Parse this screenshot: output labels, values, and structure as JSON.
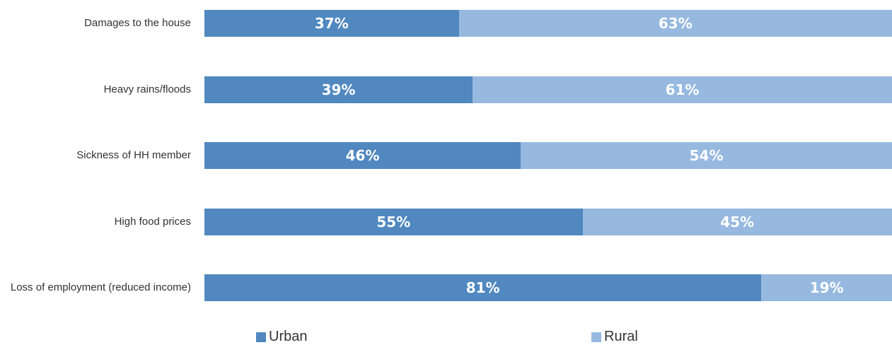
{
  "chart_data": {
    "type": "stacked-bar",
    "categories": [
      "Damages to the house",
      "Heavy rains/floods",
      "Sickness of HH member",
      "High food prices",
      "Loss of employment (reduced income)"
    ],
    "series": [
      {
        "name": "Urban",
        "color": "#5088bf",
        "values": [
          37,
          39,
          46,
          55,
          81
        ],
        "value_labels": [
          "37%",
          "39%",
          "46%",
          "55%",
          "81%"
        ]
      },
      {
        "name": "Rural",
        "color": "#97b9e0",
        "values": [
          63,
          61,
          54,
          45,
          19
        ],
        "value_labels": [
          "63%",
          "61%",
          "54%",
          "45%",
          "19%"
        ]
      }
    ]
  }
}
